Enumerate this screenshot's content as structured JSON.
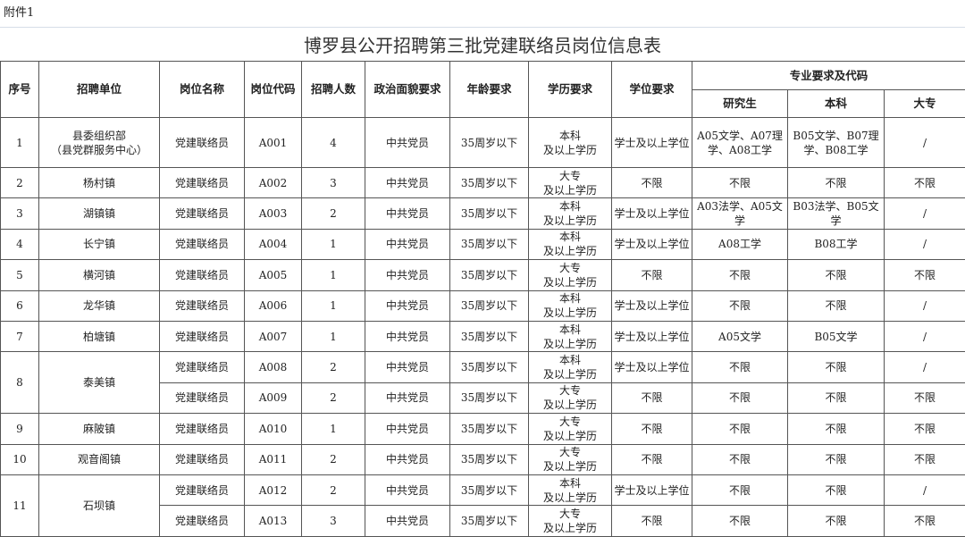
{
  "attachment_label": "附件1",
  "title": "博罗县公开招聘第三批党建联络员岗位信息表",
  "headers": {
    "seq": "序号",
    "unit": "招聘单位",
    "post": "岗位名称",
    "code": "岗位代码",
    "count": "招聘人数",
    "political": "政治面貌要求",
    "age": "年龄要求",
    "edu": "学历要求",
    "degree": "学位要求",
    "major_group": "专业要求及代码",
    "grad": "研究生",
    "ug": "本科",
    "college": "大专"
  },
  "groups": [
    {
      "seq": "1",
      "unit": "县委组织部\n（县党群服务中心）",
      "rows": [
        [
          "党建联络员",
          "A001",
          "4",
          "中共党员",
          "35周岁以下",
          "本科\n及以上学历",
          "学士及以上学位",
          "A05文学、A07理学、A08工学",
          "B05文学、B07理学、B08工学",
          "/"
        ]
      ]
    },
    {
      "seq": "2",
      "unit": "杨村镇",
      "rows": [
        [
          "党建联络员",
          "A002",
          "3",
          "中共党员",
          "35周岁以下",
          "大专\n及以上学历",
          "不限",
          "不限",
          "不限",
          "不限"
        ]
      ]
    },
    {
      "seq": "3",
      "unit": "湖镇镇",
      "rows": [
        [
          "党建联络员",
          "A003",
          "2",
          "中共党员",
          "35周岁以下",
          "本科\n及以上学历",
          "学士及以上学位",
          "A03法学、A05文学",
          "B03法学、B05文学",
          "/"
        ]
      ]
    },
    {
      "seq": "4",
      "unit": "长宁镇",
      "rows": [
        [
          "党建联络员",
          "A004",
          "1",
          "中共党员",
          "35周岁以下",
          "本科\n及以上学历",
          "学士及以上学位",
          "A08工学",
          "B08工学",
          "/"
        ]
      ]
    },
    {
      "seq": "5",
      "unit": "横河镇",
      "rows": [
        [
          "党建联络员",
          "A005",
          "1",
          "中共党员",
          "35周岁以下",
          "大专\n及以上学历",
          "不限",
          "不限",
          "不限",
          "不限"
        ]
      ]
    },
    {
      "seq": "6",
      "unit": "龙华镇",
      "rows": [
        [
          "党建联络员",
          "A006",
          "1",
          "中共党员",
          "35周岁以下",
          "本科\n及以上学历",
          "学士及以上学位",
          "不限",
          "不限",
          "/"
        ]
      ]
    },
    {
      "seq": "7",
      "unit": "柏塘镇",
      "rows": [
        [
          "党建联络员",
          "A007",
          "1",
          "中共党员",
          "35周岁以下",
          "本科\n及以上学历",
          "学士及以上学位",
          "A05文学",
          "B05文学",
          "/"
        ]
      ]
    },
    {
      "seq": "8",
      "unit": "泰美镇",
      "rows": [
        [
          "党建联络员",
          "A008",
          "2",
          "中共党员",
          "35周岁以下",
          "本科\n及以上学历",
          "学士及以上学位",
          "不限",
          "不限",
          "/"
        ],
        [
          "党建联络员",
          "A009",
          "2",
          "中共党员",
          "35周岁以下",
          "大专\n及以上学历",
          "不限",
          "不限",
          "不限",
          "不限"
        ]
      ]
    },
    {
      "seq": "9",
      "unit": "麻陂镇",
      "rows": [
        [
          "党建联络员",
          "A010",
          "1",
          "中共党员",
          "35周岁以下",
          "大专\n及以上学历",
          "不限",
          "不限",
          "不限",
          "不限"
        ]
      ]
    },
    {
      "seq": "10",
      "unit": "观音阁镇",
      "rows": [
        [
          "党建联络员",
          "A011",
          "2",
          "中共党员",
          "35周岁以下",
          "大专\n及以上学历",
          "不限",
          "不限",
          "不限",
          "不限"
        ]
      ]
    },
    {
      "seq": "11",
      "unit": "石坝镇",
      "rows": [
        [
          "党建联络员",
          "A012",
          "2",
          "中共党员",
          "35周岁以下",
          "本科\n及以上学历",
          "学士及以上学位",
          "不限",
          "不限",
          "/"
        ],
        [
          "党建联络员",
          "A013",
          "3",
          "中共党员",
          "35周岁以下",
          "大专\n及以上学历",
          "不限",
          "不限",
          "不限",
          "不限"
        ]
      ]
    }
  ]
}
